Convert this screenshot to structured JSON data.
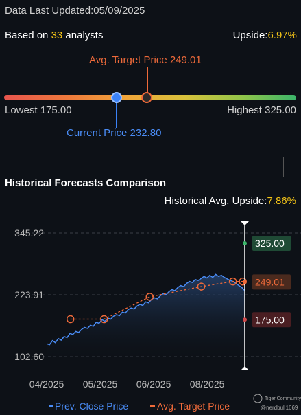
{
  "header": {
    "updated_label": "Data Last Updated:05/09/2025",
    "based_prefix": "Based on",
    "analyst_count": "33",
    "based_suffix": "analysts",
    "upside_label": "Upside:",
    "upside_value": "6.97%"
  },
  "target_range": {
    "avg_target_label": "Avg. Target Price 249.01",
    "lowest_label": "Lowest 175.00",
    "highest_label": "Highest 325.00",
    "current_label": "Current Price 232.80",
    "lowest": 175.0,
    "highest": 325.0,
    "avg_target": 249.01,
    "current": 232.8
  },
  "historical": {
    "title": "Historical Forecasts Comparison",
    "upside_label": "Historical Avg. Upside:",
    "upside_value": "7.86%"
  },
  "chart_data": {
    "type": "line",
    "x_ticks": [
      "04/2025",
      "05/2025",
      "06/2025",
      "08/2025"
    ],
    "y_ticks": [
      "345.22",
      "223.91",
      "102.60"
    ],
    "ylim": [
      102.6,
      345.22
    ],
    "grid": true,
    "legend_position": "bottom",
    "series": [
      {
        "name": "Prev. Close Price",
        "color": "#4a8cf5",
        "values": [
          128,
          126,
          134,
          130,
          138,
          135,
          142,
          140,
          148,
          146,
          152,
          150,
          156,
          160,
          158,
          164,
          162,
          170,
          168,
          175,
          172,
          178,
          176,
          182,
          185,
          183,
          190,
          188,
          195,
          198,
          196,
          202,
          205,
          203,
          210,
          208,
          215,
          218,
          216,
          222,
          226,
          224,
          230,
          234,
          232,
          238,
          242,
          240,
          246,
          250,
          248,
          254,
          252,
          256,
          260,
          257,
          262,
          258,
          264,
          260,
          262,
          258,
          255,
          252,
          250,
          246,
          242,
          238,
          232
        ]
      },
      {
        "name": "Avg. Target Price",
        "color": "#ee6a3a",
        "dashed": true,
        "points": [
          {
            "x": 0.12,
            "y": 176
          },
          {
            "x": 0.29,
            "y": 176
          },
          {
            "x": 0.52,
            "y": 220
          },
          {
            "x": 0.78,
            "y": 240
          },
          {
            "x": 0.94,
            "y": 250
          },
          {
            "x": 0.99,
            "y": 250
          }
        ]
      }
    ],
    "forecast_labels": {
      "high": "325.00",
      "avg": "249.01",
      "low": "175.00",
      "high_value": 325.0,
      "avg_value": 249.01,
      "low_value": 175.0
    }
  },
  "watermark": {
    "brand": "Tiger Community",
    "user": "@nerdbull1669"
  }
}
